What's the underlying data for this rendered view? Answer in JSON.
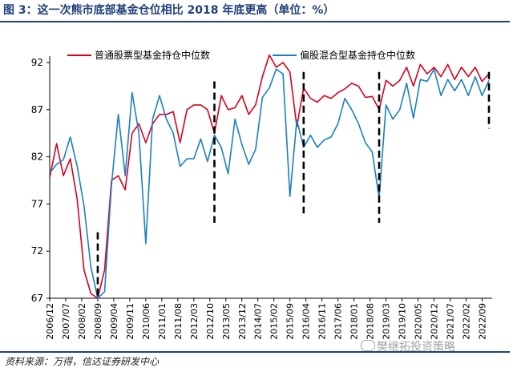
{
  "header": {
    "title": "图 3：这一次熊市底部基金仓位相比 2018 年底更高（单位：%）"
  },
  "footer": {
    "source": "资料来源：万得，信达证券研发中心",
    "watermark": "樊继拓投资策略"
  },
  "colors": {
    "series1": "#d9001b",
    "series2": "#1a7fc1",
    "marker": "#000000",
    "title": "#1f3f7a"
  },
  "chart_data": {
    "type": "line",
    "title": "",
    "xlabel": "",
    "ylabel": "",
    "ylim": [
      67,
      92
    ],
    "yticks": [
      67,
      72,
      77,
      82,
      87,
      92
    ],
    "grid": false,
    "legend_position": "top",
    "x": [
      "2006/12",
      "2007/03",
      "2007/06",
      "2007/09",
      "2007/12",
      "2008/03",
      "2008/06",
      "2008/09",
      "2008/12",
      "2009/03",
      "2009/06",
      "2009/09",
      "2009/12",
      "2010/03",
      "2010/06",
      "2010/09",
      "2010/12",
      "2011/03",
      "2011/06",
      "2011/09",
      "2011/12",
      "2012/03",
      "2012/06",
      "2012/09",
      "2012/12",
      "2013/03",
      "2013/06",
      "2013/09",
      "2013/12",
      "2014/03",
      "2014/06",
      "2014/09",
      "2014/12",
      "2015/03",
      "2015/06",
      "2015/09",
      "2015/12",
      "2016/03",
      "2016/06",
      "2016/09",
      "2016/12",
      "2017/03",
      "2017/06",
      "2017/09",
      "2017/12",
      "2018/03",
      "2018/06",
      "2018/09",
      "2018/12",
      "2019/03",
      "2019/06",
      "2019/09",
      "2019/12",
      "2020/03",
      "2020/06",
      "2020/09",
      "2020/12",
      "2021/03",
      "2021/06",
      "2021/09",
      "2021/12",
      "2022/03",
      "2022/06",
      "2022/09",
      "2022/12"
    ],
    "xticks": [
      "2006/12",
      "2007/07",
      "2008/02",
      "2008/09",
      "2009/04",
      "2009/11",
      "2010/06",
      "2011/01",
      "2011/08",
      "2012/03",
      "2012/10",
      "2013/05",
      "2013/12",
      "2014/07",
      "2015/02",
      "2015/09",
      "2016/04",
      "2016/11",
      "2017/06",
      "2018/01",
      "2018/08",
      "2019/03",
      "2019/10",
      "2020/05",
      "2020/12",
      "2021/07",
      "2022/02",
      "2022/09"
    ],
    "series": [
      {
        "name": "普通股票型基金持仓中位数",
        "values": [
          79.8,
          83.4,
          80.0,
          81.8,
          77.5,
          70.0,
          67.5,
          67.0,
          70.0,
          79.5,
          80.0,
          78.5,
          84.5,
          85.5,
          83.5,
          85.5,
          86.5,
          86.5,
          86.8,
          83.5,
          87.0,
          87.5,
          87.5,
          87.0,
          84.5,
          88.5,
          87.0,
          87.2,
          88.5,
          86.5,
          87.5,
          90.5,
          92.8,
          91.5,
          92.0,
          91.0,
          85.2,
          89.3,
          88.2,
          87.8,
          88.5,
          88.2,
          88.8,
          89.2,
          89.8,
          89.5,
          88.3,
          88.4,
          87.0,
          90.1,
          89.5,
          90.1,
          91.5,
          89.5,
          91.8,
          90.8,
          91.5,
          90.5,
          91.8,
          90.2,
          91.5,
          90.5,
          91.5,
          90.0,
          90.8
        ]
      },
      {
        "name": "偏股混合型基金持仓中位数",
        "values": [
          80.3,
          81.2,
          81.7,
          84.1,
          81.0,
          76.8,
          70.3,
          67.0,
          67.7,
          79.0,
          86.5,
          80.0,
          88.8,
          84.5,
          72.8,
          86.0,
          88.5,
          86.0,
          84.5,
          81.0,
          81.8,
          81.8,
          83.9,
          81.5,
          84.3,
          83.0,
          80.2,
          86.0,
          83.3,
          81.2,
          82.8,
          88.3,
          89.3,
          91.3,
          90.8,
          77.8,
          85.9,
          83.0,
          84.3,
          83.0,
          83.8,
          84.1,
          85.5,
          88.2,
          87.0,
          85.5,
          83.5,
          82.5,
          77.6,
          87.5,
          86.0,
          87.0,
          89.8,
          86.1,
          90.2,
          90.0,
          91.3,
          88.5,
          90.2,
          89.0,
          90.2,
          88.5,
          90.5,
          88.5,
          90.1
        ]
      }
    ],
    "annotations": [
      {
        "label": "dashed marker",
        "x": "2008/09",
        "y_range": [
          67,
          74
        ]
      },
      {
        "label": "dashed marker",
        "x": "2012/12",
        "y_range": [
          75,
          90
        ]
      },
      {
        "label": "dashed marker",
        "x": "2016/03",
        "y_range": [
          76,
          91
        ]
      },
      {
        "label": "dashed marker",
        "x": "2018/12",
        "y_range": [
          75,
          91
        ]
      },
      {
        "label": "dashed marker",
        "x": "2022/12",
        "y_range": [
          85,
          91
        ]
      }
    ]
  }
}
